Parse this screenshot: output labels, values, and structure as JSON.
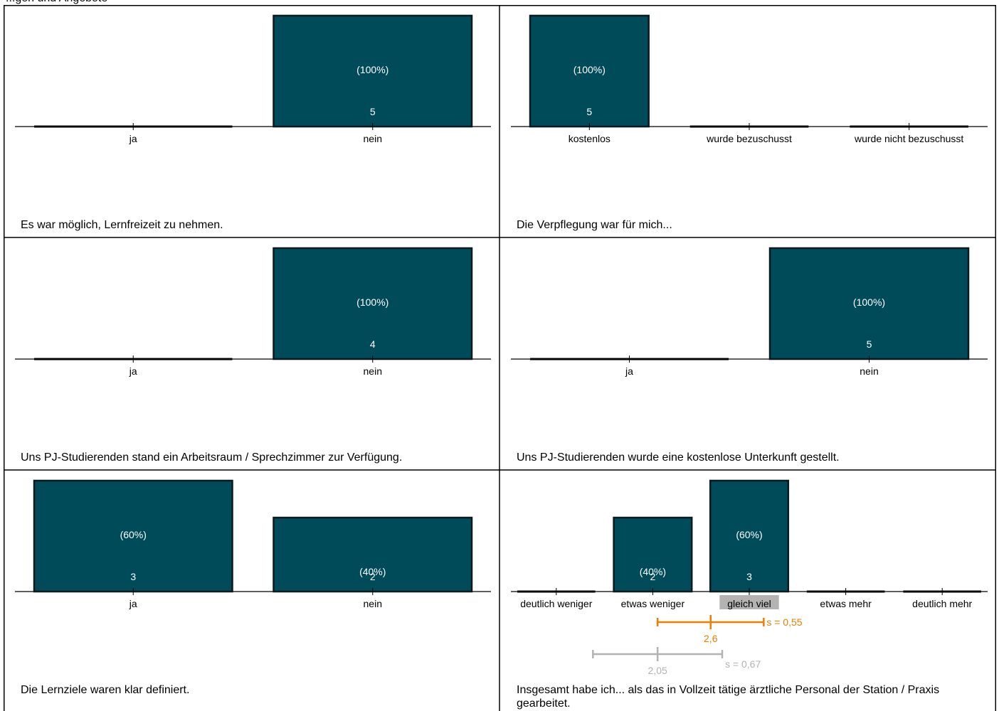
{
  "header": {
    "text": "...gen und Angebote"
  },
  "colors": {
    "bar": "#004b5a",
    "bar_stroke": "#0a1a1e",
    "mean": "#f07d00",
    "comparison": "#b3b3b3",
    "highlight": "#b3b3b3"
  },
  "chart_data": [
    {
      "type": "bar",
      "title": "Es war möglich, Lernfreizeit zu nehmen.",
      "categories": [
        "ja",
        "nein"
      ],
      "values": [
        0,
        5
      ],
      "percent_labels": [
        "",
        "(100%)"
      ]
    },
    {
      "type": "bar",
      "title": "Die Verpflegung war für mich...",
      "categories": [
        "kostenlos",
        "wurde bezuschusst",
        "wurde nicht bezuschusst"
      ],
      "values": [
        5,
        0,
        0
      ],
      "percent_labels": [
        "(100%)",
        "",
        ""
      ]
    },
    {
      "type": "bar",
      "title": "Uns PJ-Studierenden stand ein Arbeitsraum / Sprechzimmer zur Verfügung.",
      "categories": [
        "ja",
        "nein"
      ],
      "values": [
        0,
        4
      ],
      "percent_labels": [
        "",
        "(100%)"
      ]
    },
    {
      "type": "bar",
      "title": "Uns PJ-Studierenden wurde eine kostenlose Unterkunft gestellt.",
      "categories": [
        "ja",
        "nein"
      ],
      "values": [
        0,
        5
      ],
      "percent_labels": [
        "",
        "(100%)"
      ]
    },
    {
      "type": "bar",
      "title": "Die Lernziele waren klar definiert.",
      "categories": [
        "ja",
        "nein"
      ],
      "values": [
        3,
        2
      ],
      "percent_labels": [
        "(60%)",
        "(40%)"
      ]
    },
    {
      "type": "bar",
      "title": "Insgesamt habe ich... als das in Vollzeit tätige ärztliche Personal der Station / Praxis gearbeitet.",
      "categories": [
        "deutlich weniger",
        "etwas weniger",
        "gleich viel",
        "etwas mehr",
        "deutlich mehr"
      ],
      "values": [
        0,
        2,
        3,
        0,
        0
      ],
      "percent_labels": [
        "",
        "(40%)",
        "(60%)",
        "",
        ""
      ],
      "highlight_category": "gleich viel",
      "stats": [
        {
          "mean": 2.6,
          "mean_label": "2,6",
          "sd": 0.55,
          "sd_label": "s = 0,55",
          "color": "#f07d00"
        },
        {
          "mean": 2.05,
          "mean_label": "2,05",
          "sd": 0.67,
          "sd_label": "s = 0,67",
          "color": "#b3b3b3"
        }
      ]
    }
  ]
}
